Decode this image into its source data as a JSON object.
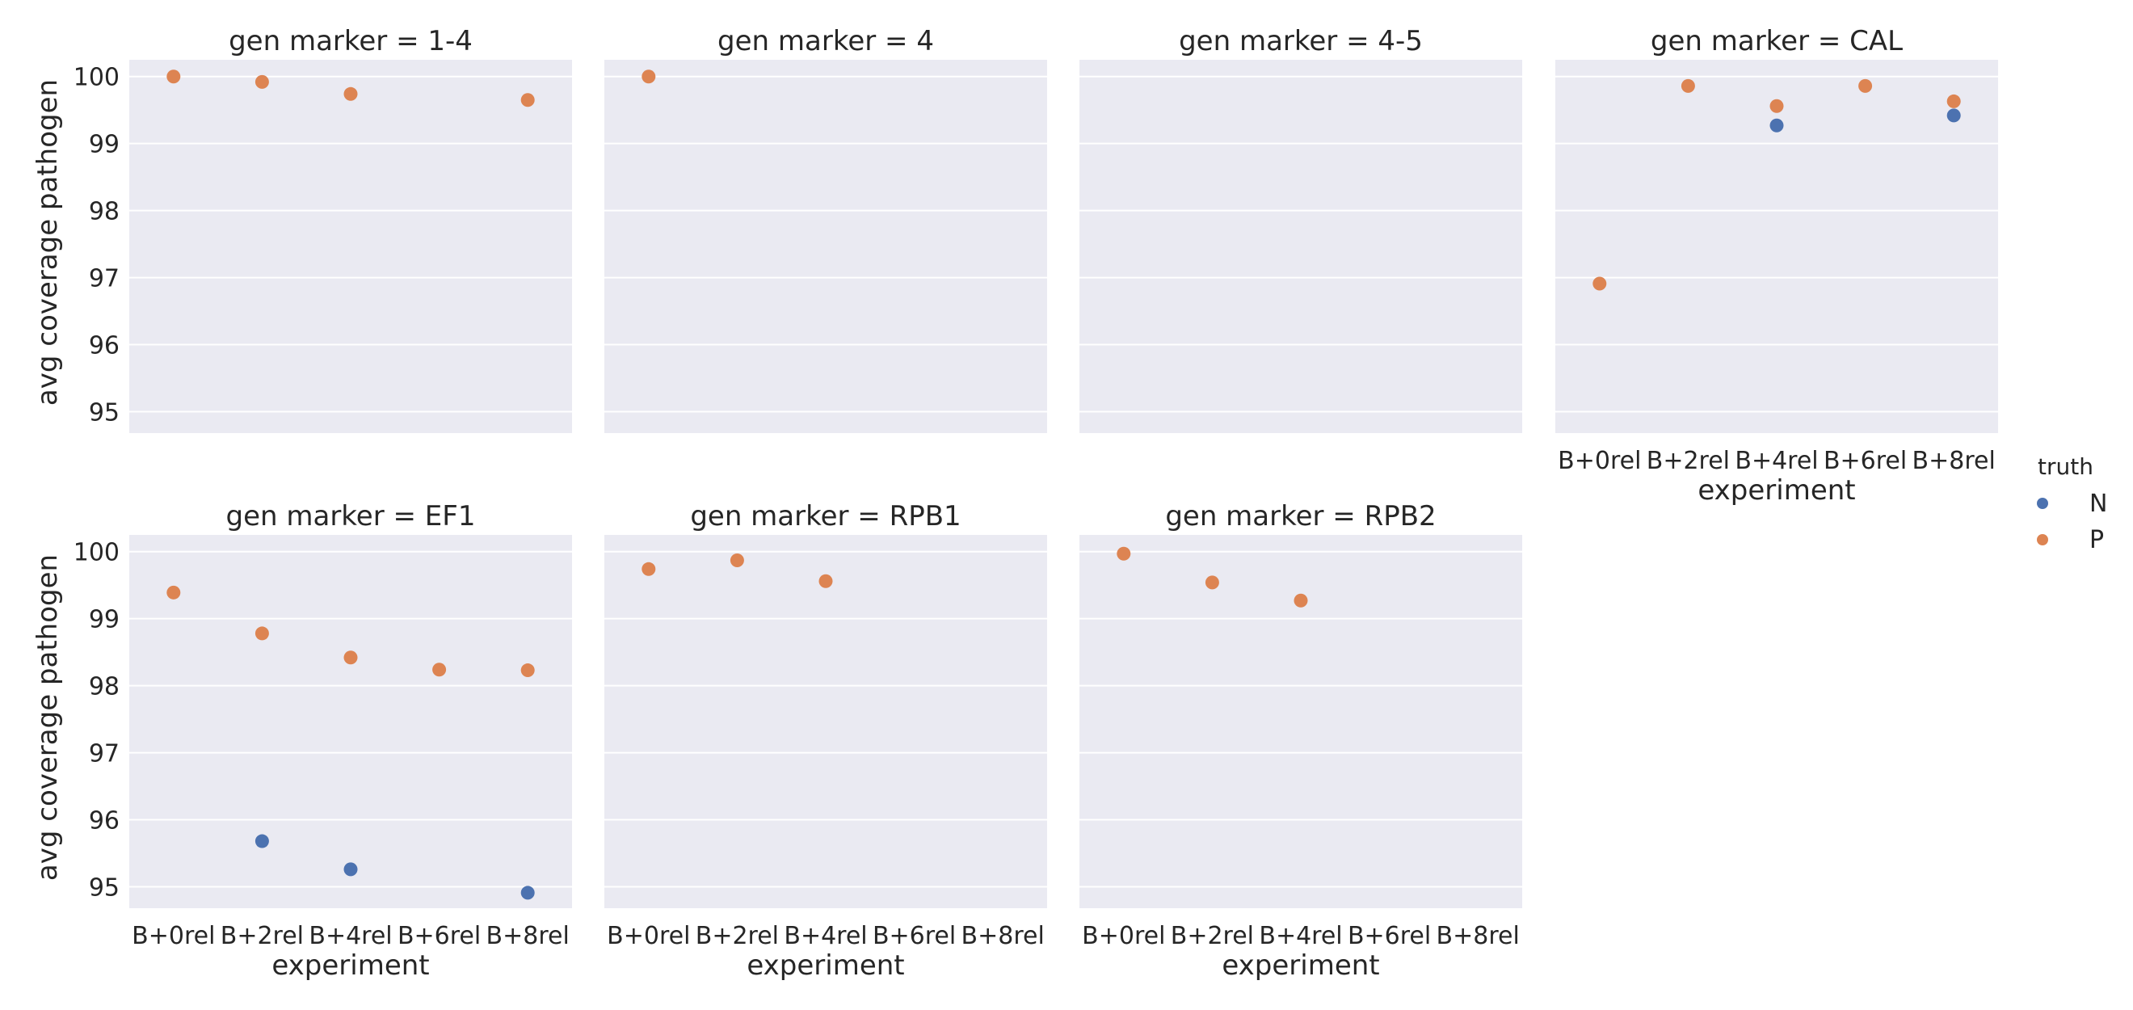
{
  "chart_data": {
    "type": "scatter",
    "facet_variable": "gen marker",
    "xlabel": "experiment",
    "ylabel": "avg coverage pathogen",
    "categories": [
      "B+0rel",
      "B+2rel",
      "B+4rel",
      "B+6rel",
      "B+8rel"
    ],
    "ylim": [
      94.68,
      100.25
    ],
    "yticks": [
      95,
      96,
      97,
      98,
      99,
      100
    ],
    "grid": true,
    "legend": {
      "title": "truth",
      "placement": "right",
      "entries": [
        {
          "label": "N",
          "color": "#4c72b0"
        },
        {
          "label": "P",
          "color": "#dd8452"
        }
      ]
    },
    "panels": [
      {
        "title": "gen marker = 1-4",
        "series": [
          {
            "name": "N",
            "values": [
              null,
              null,
              null,
              null,
              null
            ]
          },
          {
            "name": "P",
            "values": [
              100.0,
              99.92,
              99.74,
              null,
              99.65
            ]
          }
        ]
      },
      {
        "title": "gen marker = 4",
        "series": [
          {
            "name": "N",
            "values": [
              null,
              null,
              null,
              null,
              null
            ]
          },
          {
            "name": "P",
            "values": [
              100.0,
              null,
              null,
              null,
              null
            ]
          }
        ]
      },
      {
        "title": "gen marker = 4-5",
        "series": [
          {
            "name": "N",
            "values": [
              null,
              null,
              null,
              null,
              null
            ]
          },
          {
            "name": "P",
            "values": [
              null,
              null,
              null,
              null,
              null
            ]
          }
        ]
      },
      {
        "title": "gen marker = CAL",
        "series": [
          {
            "name": "N",
            "values": [
              null,
              null,
              99.27,
              null,
              99.42
            ]
          },
          {
            "name": "P",
            "values": [
              96.91,
              99.86,
              99.56,
              99.86,
              99.63
            ]
          }
        ]
      },
      {
        "title": "gen marker = EF1",
        "series": [
          {
            "name": "N",
            "values": [
              null,
              95.68,
              95.26,
              null,
              94.91
            ]
          },
          {
            "name": "P",
            "values": [
              99.39,
              98.78,
              98.42,
              98.24,
              98.23
            ]
          }
        ]
      },
      {
        "title": "gen marker = RPB1",
        "series": [
          {
            "name": "N",
            "values": [
              null,
              null,
              null,
              null,
              null
            ]
          },
          {
            "name": "P",
            "values": [
              99.74,
              99.87,
              99.56,
              null,
              null
            ]
          }
        ]
      },
      {
        "title": "gen marker = RPB2",
        "series": [
          {
            "name": "N",
            "values": [
              null,
              null,
              null,
              null,
              null
            ]
          },
          {
            "name": "P",
            "values": [
              99.97,
              99.54,
              99.27,
              null,
              null
            ]
          }
        ]
      }
    ]
  }
}
